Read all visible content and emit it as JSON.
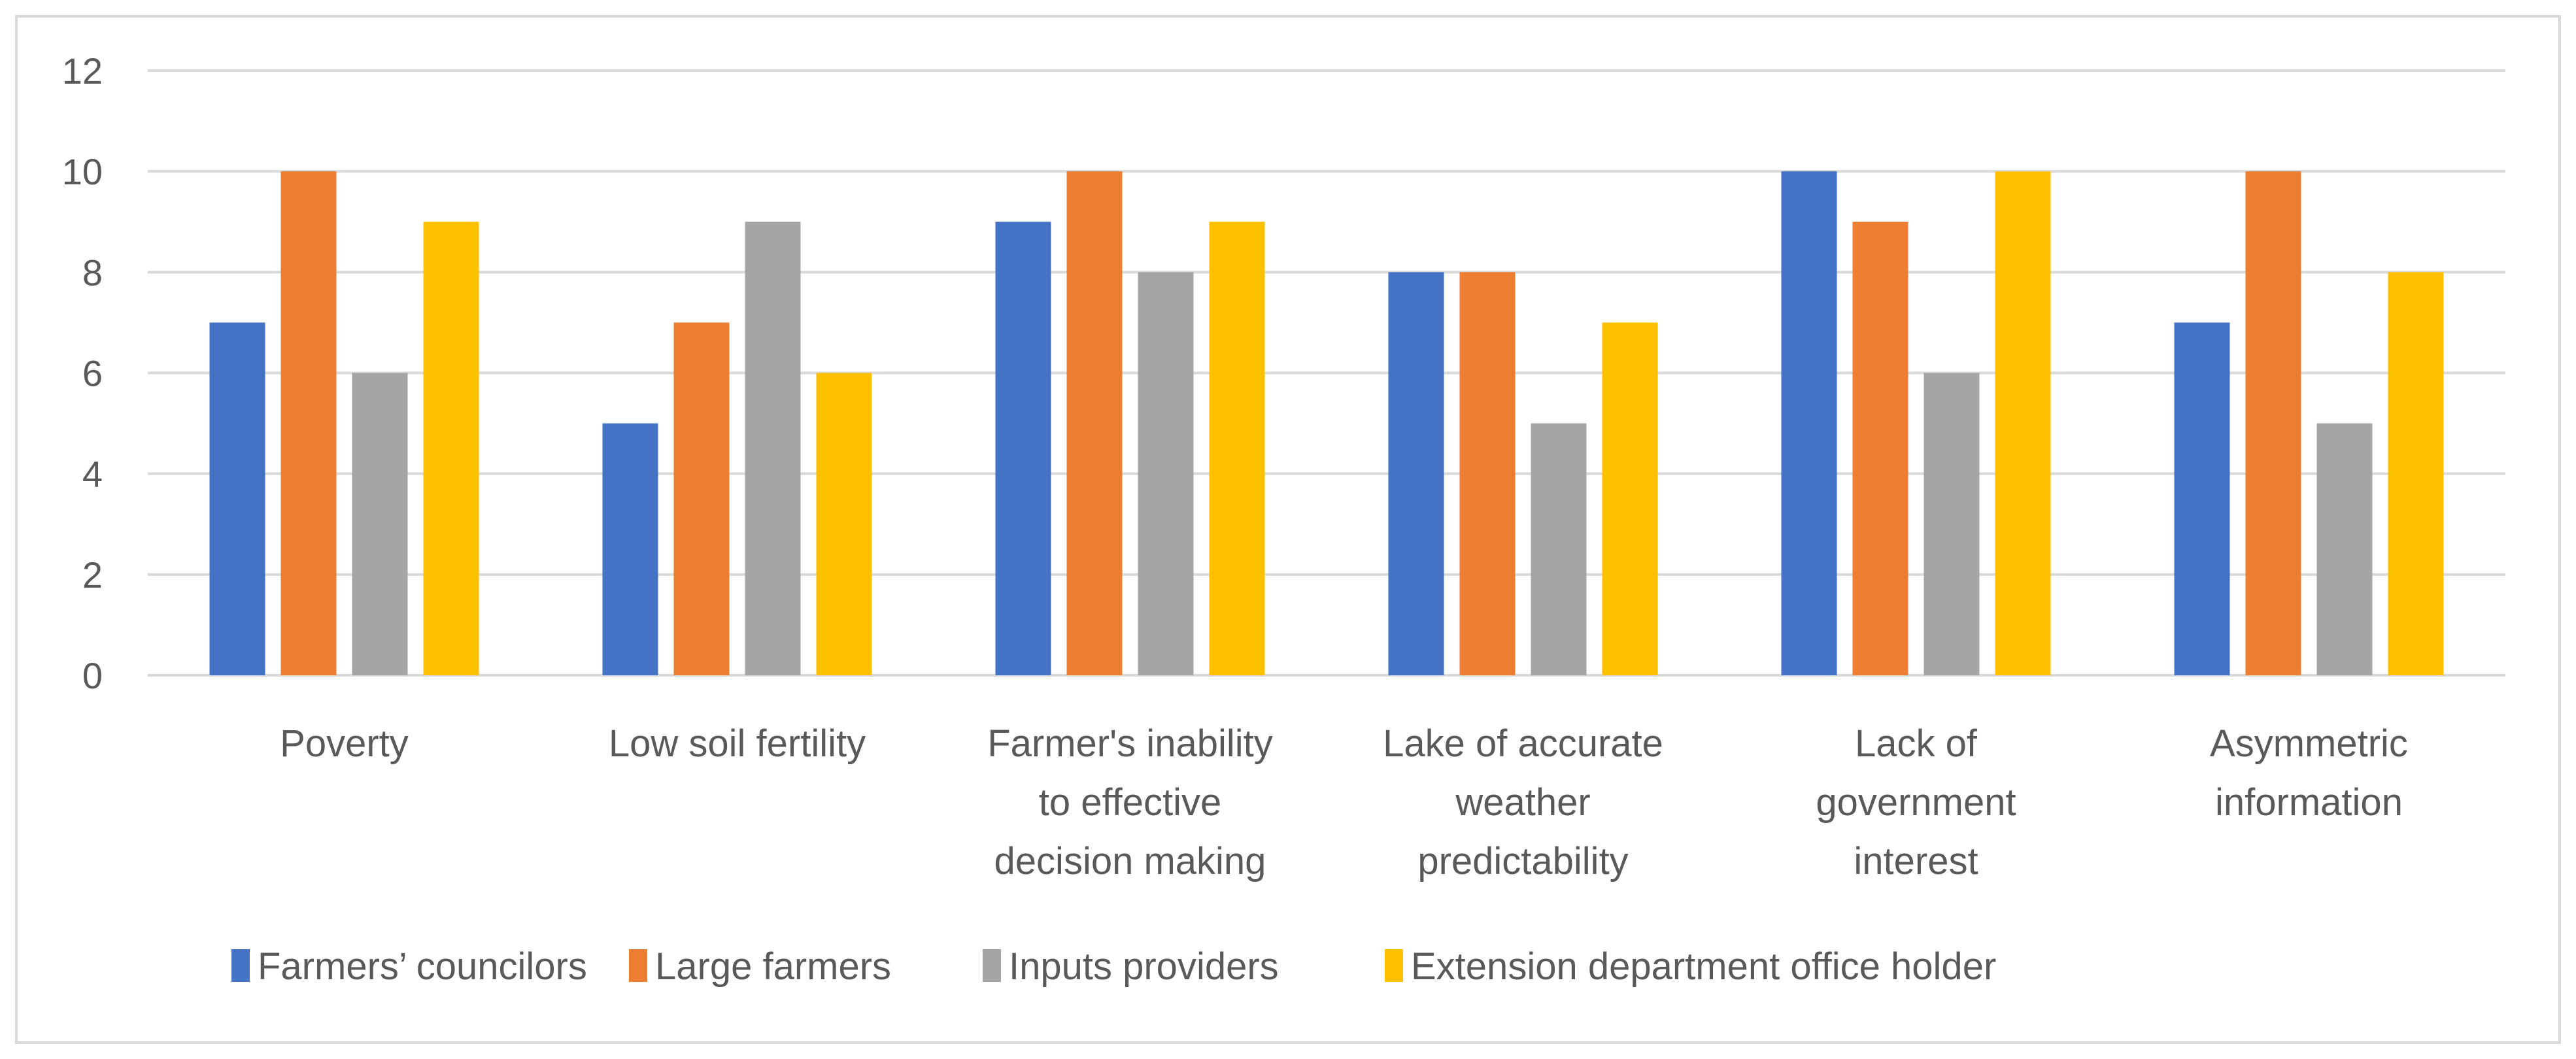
{
  "chart_data": {
    "type": "bar",
    "title": "",
    "xlabel": "",
    "ylabel": "",
    "ylim": [
      0,
      12
    ],
    "yticks": [
      0,
      2,
      4,
      6,
      8,
      10,
      12
    ],
    "grid": true,
    "legend_position": "bottom",
    "categories": [
      [
        "Poverty"
      ],
      [
        "Low soil fertility"
      ],
      [
        "Farmer's inability",
        "to effective",
        "decision making"
      ],
      [
        "Lake of accurate",
        "weather",
        "predictability"
      ],
      [
        "Lack of",
        "government",
        "interest"
      ],
      [
        "Asymmetric",
        "information"
      ]
    ],
    "series": [
      {
        "name": "Farmers’ councilors",
        "color": "#4472C4",
        "values": [
          7,
          5,
          9,
          8,
          10,
          7
        ]
      },
      {
        "name": "Large farmers",
        "color": "#ED7D31",
        "values": [
          10,
          7,
          10,
          8,
          9,
          10
        ]
      },
      {
        "name": "Inputs providers",
        "color": "#A5A5A5",
        "values": [
          6,
          9,
          8,
          5,
          6,
          5
        ]
      },
      {
        "name": "Extension department office holder",
        "color": "#FFC000",
        "values": [
          9,
          6,
          9,
          7,
          10,
          8
        ]
      }
    ]
  }
}
